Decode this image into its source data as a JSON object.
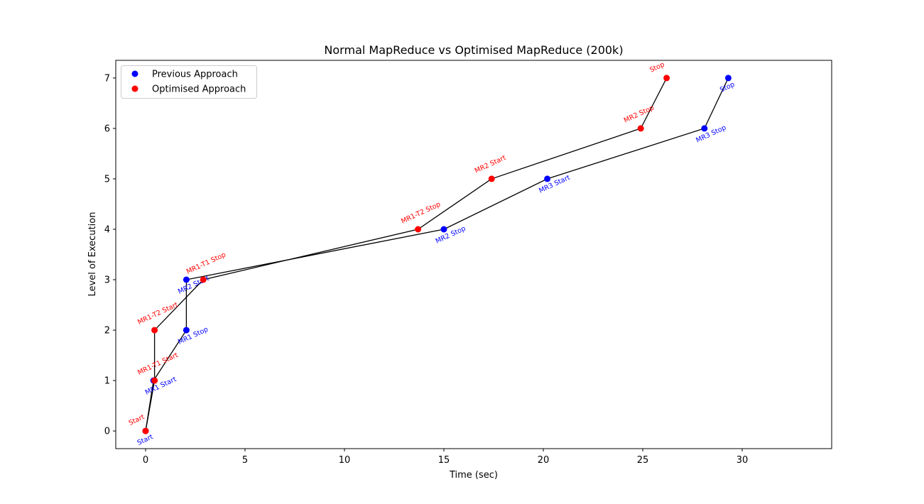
{
  "chart_data": {
    "type": "line",
    "title": "Normal MapReduce vs Optimised MapReduce  (200k)",
    "xlabel": "Time (sec)",
    "ylabel": "Level of Execution",
    "xlim": [
      -1.5,
      34.5
    ],
    "ylim": [
      -0.35,
      7.35
    ],
    "xticks": [
      0,
      5,
      10,
      15,
      20,
      25,
      30
    ],
    "yticks": [
      0,
      1,
      2,
      3,
      4,
      5,
      6,
      7
    ],
    "legend_position": "top-left",
    "grid": false,
    "series": [
      {
        "name": "Previous Approach",
        "color": "#0000ff",
        "line_color": "#000000",
        "label_placement": "below",
        "points": [
          {
            "x": 0.0,
            "y": 0,
            "label": "Start"
          },
          {
            "x": 0.4,
            "y": 1,
            "label": "MR1 Start"
          },
          {
            "x": 2.05,
            "y": 2,
            "label": "MR1 Stop"
          },
          {
            "x": 2.05,
            "y": 3,
            "label": "MR2 Start"
          },
          {
            "x": 15.0,
            "y": 4,
            "label": "MR2 Stop"
          },
          {
            "x": 20.2,
            "y": 5,
            "label": "MR3 Start"
          },
          {
            "x": 28.1,
            "y": 6,
            "label": "MR3 Stop"
          },
          {
            "x": 29.3,
            "y": 7,
            "label": "Stop"
          }
        ]
      },
      {
        "name": "Optimised Approach",
        "color": "#ff0000",
        "line_color": "#000000",
        "label_placement": "above",
        "points": [
          {
            "x": 0.0,
            "y": 0,
            "label": "Start"
          },
          {
            "x": 0.45,
            "y": 1,
            "label": "MR1-T1 Start"
          },
          {
            "x": 0.45,
            "y": 2,
            "label": "MR1-T2 Start"
          },
          {
            "x": 2.9,
            "y": 3,
            "label": "MR1-T1 Stop"
          },
          {
            "x": 13.7,
            "y": 4,
            "label": "MR1-T2 Stop"
          },
          {
            "x": 17.4,
            "y": 5,
            "label": "MR2 Start"
          },
          {
            "x": 24.9,
            "y": 6,
            "label": "MR2 Stop"
          },
          {
            "x": 26.2,
            "y": 7,
            "label": "Stop"
          }
        ]
      }
    ]
  }
}
